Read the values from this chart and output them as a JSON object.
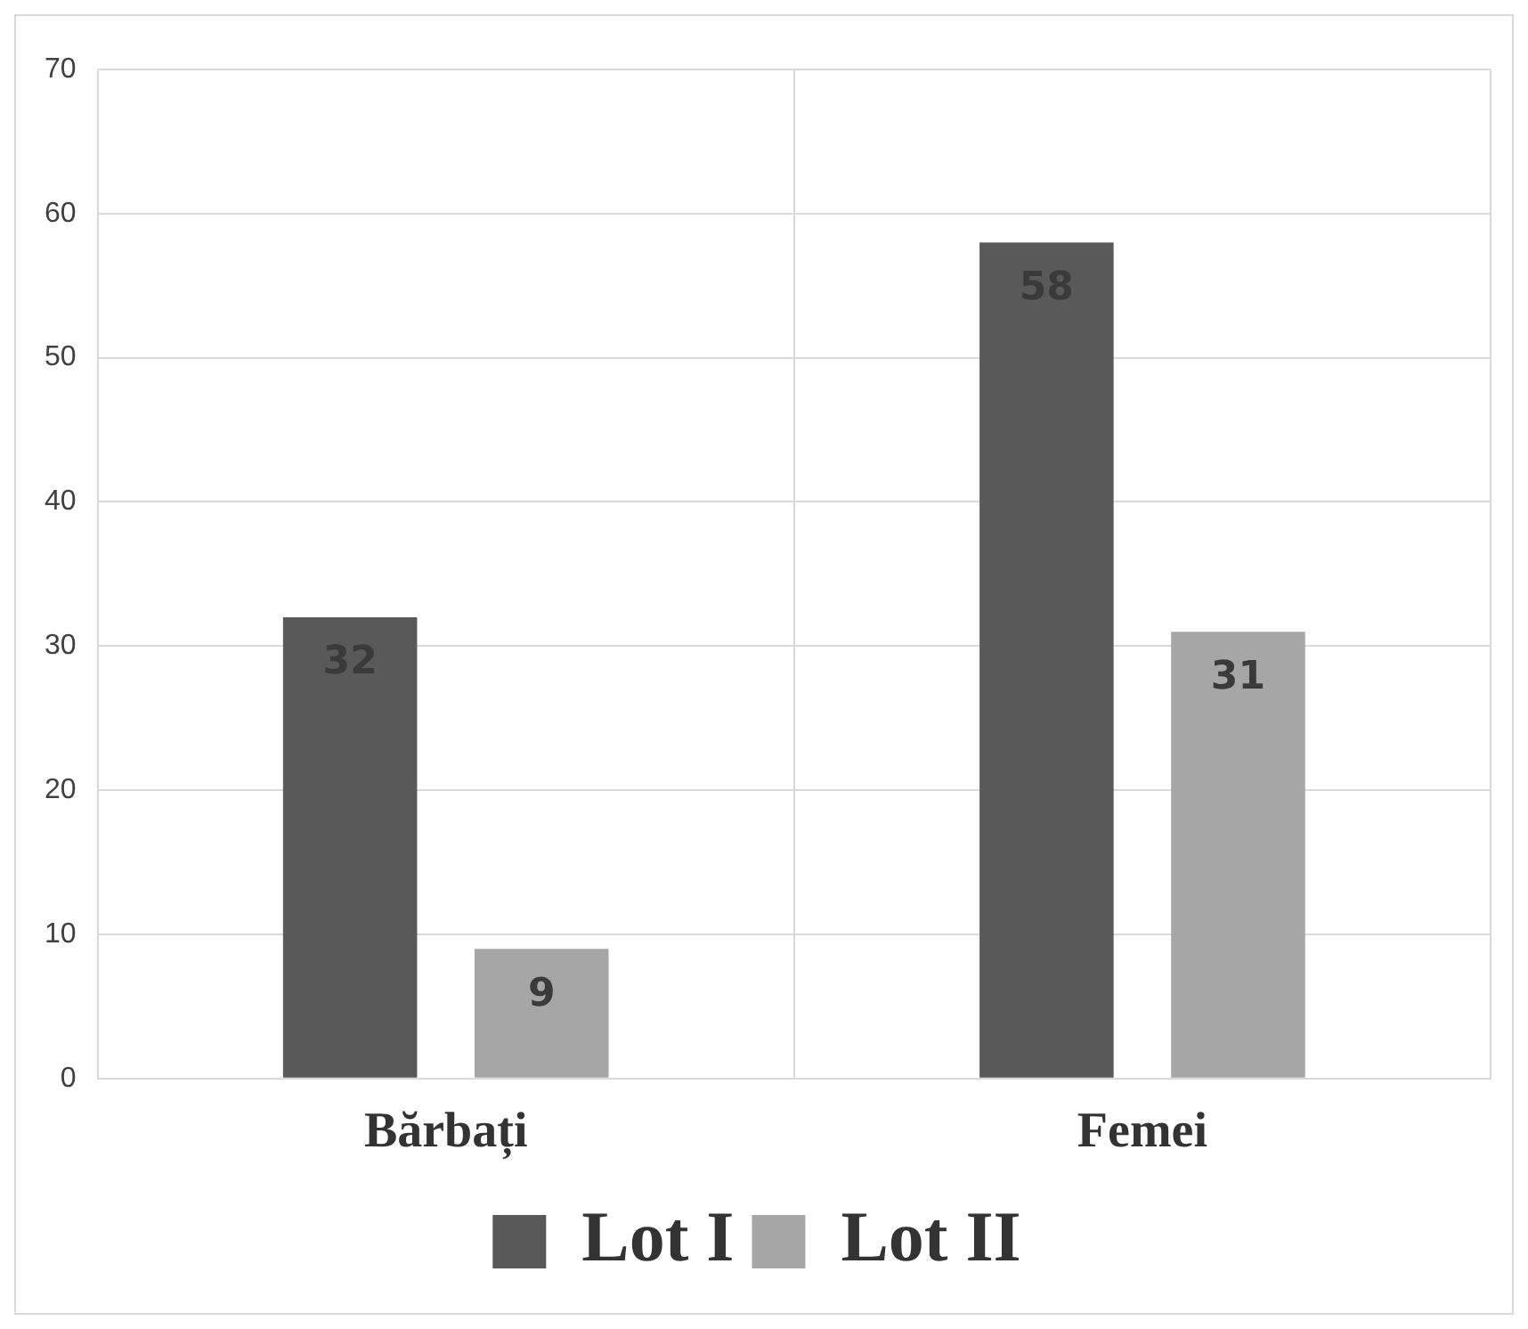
{
  "chart_data": {
    "type": "bar",
    "categories": [
      "Bărbați",
      "Femei"
    ],
    "series": [
      {
        "name": "Lot I",
        "color": "#595959",
        "values": [
          32,
          58
        ]
      },
      {
        "name": "Lot II",
        "color": "#a6a6a6",
        "values": [
          9,
          31
        ]
      }
    ],
    "ylim": [
      0,
      70
    ],
    "yticks": [
      0,
      10,
      20,
      30,
      40,
      50,
      60,
      70
    ],
    "grid": true,
    "legend": "bottom",
    "data_labels": true
  }
}
